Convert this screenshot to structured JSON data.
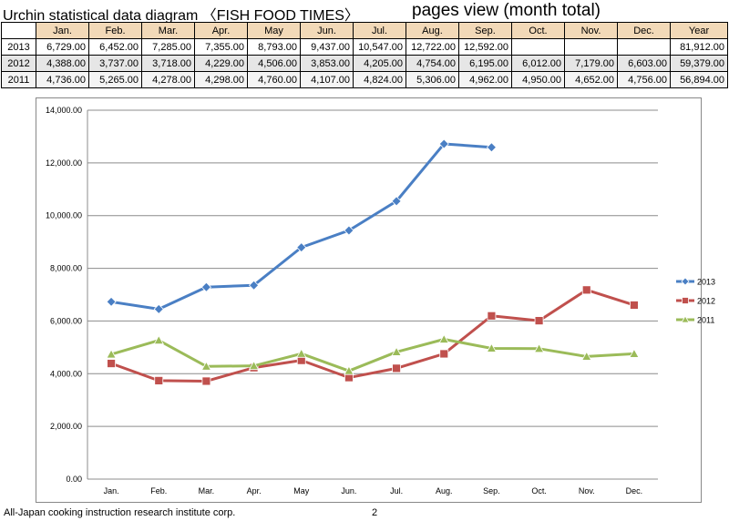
{
  "header": {
    "title": "Urchin statistical data diagram 〈FISH FOOD TIMES〉",
    "subtitle": "pages view (month total)"
  },
  "table": {
    "columns": [
      "Jan.",
      "Feb.",
      "Mar.",
      "Apr.",
      "May",
      "Jun.",
      "Jul.",
      "Aug.",
      "Sep.",
      "Oct.",
      "Nov.",
      "Dec.",
      "Year"
    ],
    "rows": [
      {
        "year": "2013",
        "cells": [
          "6,729.00",
          "6,452.00",
          "7,285.00",
          "7,355.00",
          "8,793.00",
          "9,437.00",
          "10,547.00",
          "12,722.00",
          "12,592.00",
          "",
          "",
          "",
          "81,912.00"
        ]
      },
      {
        "year": "2012",
        "cells": [
          "4,388.00",
          "3,737.00",
          "3,718.00",
          "4,229.00",
          "4,506.00",
          "3,853.00",
          "4,205.00",
          "4,754.00",
          "6,195.00",
          "6,012.00",
          "7,179.00",
          "6,603.00",
          "59,379.00"
        ]
      },
      {
        "year": "2011",
        "cells": [
          "4,736.00",
          "5,265.00",
          "4,278.00",
          "4,298.00",
          "4,760.00",
          "4,107.00",
          "4,824.00",
          "5,306.00",
          "4,962.00",
          "4,950.00",
          "4,652.00",
          "4,756.00",
          "56,894.00"
        ]
      }
    ]
  },
  "chart_data": {
    "type": "line",
    "categories": [
      "Jan.",
      "Feb.",
      "Mar.",
      "Apr.",
      "May",
      "Jun.",
      "Jul.",
      "Aug.",
      "Sep.",
      "Oct.",
      "Nov.",
      "Dec."
    ],
    "series": [
      {
        "name": "2013",
        "color": "#4a7fc4",
        "marker": "diamond",
        "values": [
          6729,
          6452,
          7285,
          7355,
          8793,
          9437,
          10547,
          12722,
          12592,
          null,
          null,
          null
        ]
      },
      {
        "name": "2012",
        "color": "#c0504d",
        "marker": "square",
        "values": [
          4388,
          3737,
          3718,
          4229,
          4506,
          3853,
          4205,
          4754,
          6195,
          6012,
          7179,
          6603
        ]
      },
      {
        "name": "2011",
        "color": "#9bbb59",
        "marker": "triangle",
        "values": [
          4736,
          5265,
          4278,
          4298,
          4760,
          4107,
          4824,
          5306,
          4962,
          4950,
          4652,
          4756
        ]
      }
    ],
    "yticks": [
      "0.00",
      "2,000.00",
      "4,000.00",
      "6,000.00",
      "8,000.00",
      "10,000.00",
      "12,000.00",
      "14,000.00"
    ],
    "ylim": [
      0,
      14000
    ],
    "grid": true,
    "legend_position": "right"
  },
  "footer": {
    "text": "All-Japan cooking instruction research institute corp.",
    "page": "2"
  }
}
